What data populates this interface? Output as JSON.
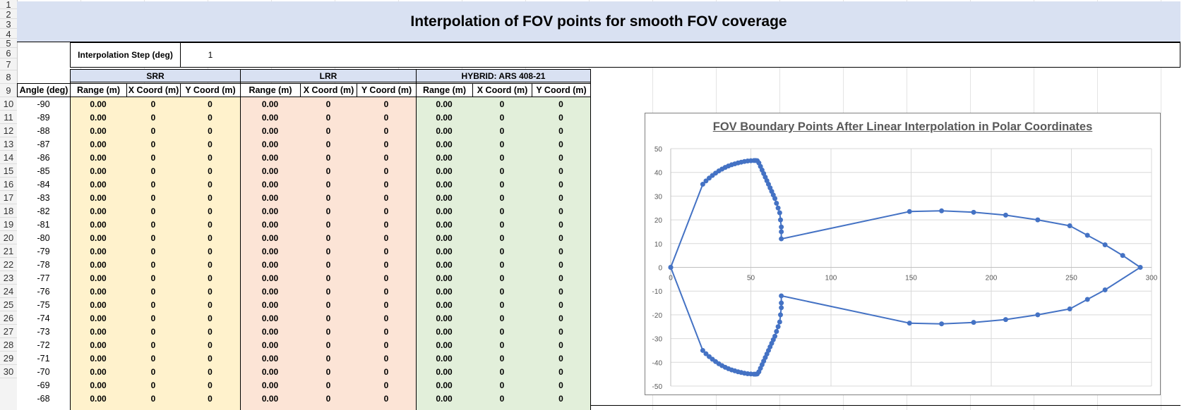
{
  "sheet": {
    "title": "Interpolation of FOV points for smooth FOV coverage",
    "row_numbers": [
      "1",
      "2",
      "3",
      "4",
      "5",
      "6",
      "7",
      "8",
      "9",
      "10",
      "11",
      "12",
      "13",
      "14",
      "15",
      "16",
      "17",
      "18",
      "19",
      "20",
      "21",
      "22",
      "23",
      "24",
      "25",
      "26",
      "27",
      "28",
      "29",
      "30"
    ],
    "interp_label": "Interpolation Step (deg)",
    "interp_value": "1",
    "groups": [
      "SRR",
      "LRR",
      "HYBRID: ARS 408-21"
    ],
    "headers": [
      "Angle (deg)",
      "Range (m)",
      "X Coord (m)",
      "Y Coord (m)",
      "Range (m)",
      "X Coord (m)",
      "Y Coord (m)",
      "Range (m)",
      "X Coord (m)",
      "Y Coord (m)"
    ],
    "angles": [
      "-90",
      "-89",
      "-88",
      "-87",
      "-86",
      "-85",
      "-84",
      "-83",
      "-82",
      "-81",
      "-80",
      "-79",
      "-78",
      "-77",
      "-76",
      "-75",
      "-74",
      "-73",
      "-72",
      "-71",
      "-70",
      "-69",
      "-68"
    ],
    "range_value": "0.00",
    "coord_value": "0",
    "colors": {
      "srr": "#fff2cc",
      "lrr": "#fce4d6",
      "hybrid": "#e2efda",
      "header": "#d9e1f2",
      "series": "#4472c4"
    }
  },
  "chart_data": {
    "type": "scatter",
    "title": "FOV Boundary Points After Linear Interpolation in Polar Coordinates",
    "xlim": [
      0,
      300
    ],
    "ylim": [
      -50,
      50
    ],
    "xticks": [
      "0",
      "50",
      "100",
      "150",
      "200",
      "250",
      "300"
    ],
    "yticks": [
      "50",
      "40",
      "30",
      "20",
      "10",
      "0",
      "-10",
      "-20",
      "-30",
      "-40",
      "-50"
    ],
    "grid": true,
    "series": [
      {
        "x": [
          0,
          20,
          22,
          24,
          26,
          28,
          30,
          32,
          34,
          36,
          38,
          40,
          42,
          44,
          46,
          48,
          50,
          52,
          53,
          54,
          55,
          56,
          57,
          58,
          59,
          60,
          61,
          62,
          63,
          64,
          65,
          66,
          67,
          68,
          68.5,
          69,
          69,
          69,
          149,
          169,
          189,
          209,
          229,
          249,
          260,
          271,
          282,
          293,
          271,
          260,
          249,
          229,
          209,
          189,
          169,
          149,
          69,
          69,
          69,
          68.5,
          68,
          67,
          66,
          65,
          64,
          63,
          62,
          61,
          60,
          59,
          58,
          57,
          56,
          55,
          54,
          53,
          52,
          50,
          48,
          46,
          44,
          42,
          40,
          38,
          36,
          34,
          32,
          30,
          28,
          26,
          24,
          22,
          20,
          0
        ],
        "y": [
          0,
          35,
          36.4,
          37.6,
          38.7,
          39.7,
          40.6,
          41.4,
          42.1,
          42.7,
          43.2,
          43.6,
          44,
          44.3,
          44.6,
          44.8,
          44.9,
          45,
          45,
          44.9,
          44,
          42.5,
          41,
          39.5,
          38,
          36.5,
          35,
          33.5,
          32,
          30.5,
          29,
          27,
          25,
          23,
          20,
          17,
          15,
          12,
          23.5,
          23.8,
          23.2,
          22,
          20,
          17.5,
          13.5,
          9.5,
          5,
          0,
          -9.5,
          -13.5,
          -17.5,
          -20,
          -22,
          -23.2,
          -23.8,
          -23.5,
          -12,
          -15,
          -17,
          -20,
          -23,
          -25,
          -27,
          -29,
          -30.5,
          -32,
          -33.5,
          -35,
          -36.5,
          -38,
          -39.5,
          -41,
          -42.5,
          -44,
          -44.9,
          -45,
          -45,
          -44.9,
          -44.8,
          -44.6,
          -44.3,
          -44,
          -43.6,
          -43.2,
          -42.7,
          -42.1,
          -41.4,
          -40.6,
          -39.7,
          -38.7,
          -37.6,
          -36.4,
          -35,
          0
        ]
      }
    ]
  }
}
